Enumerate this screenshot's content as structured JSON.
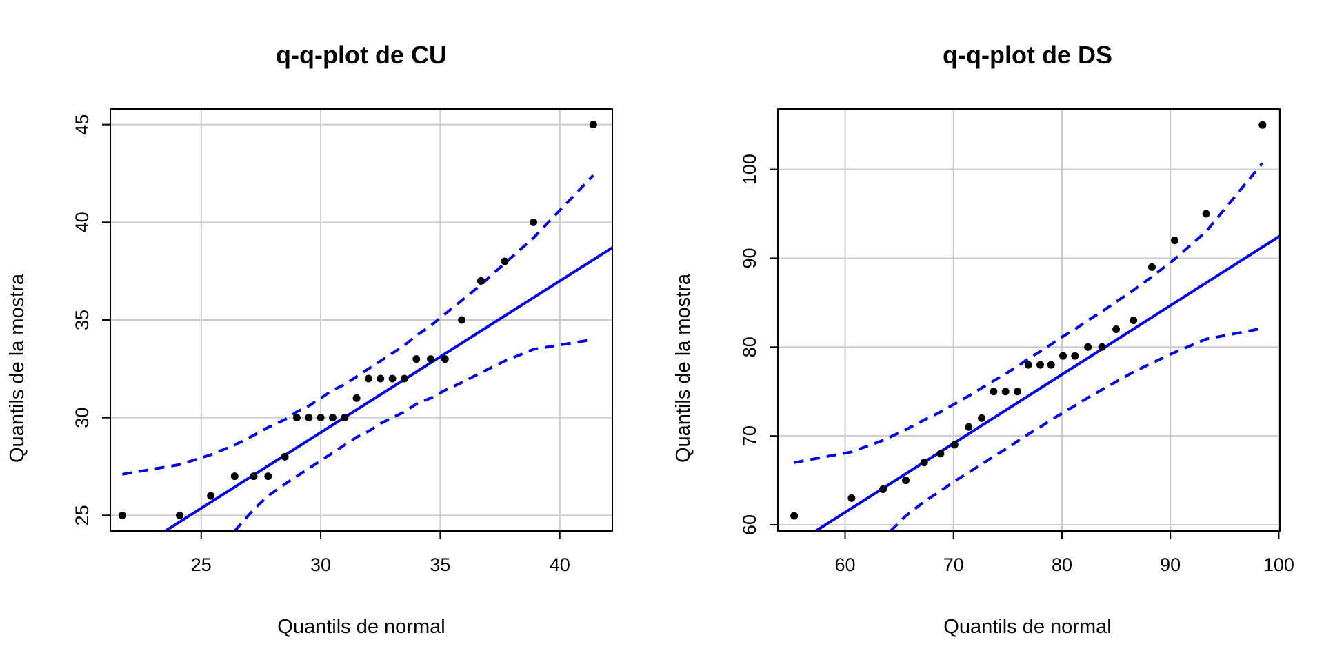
{
  "chart_data": [
    {
      "type": "scatter",
      "title": "q-q-plot de CU",
      "xlabel": "Quantils de normal",
      "ylabel": "Quantils de la mostra",
      "xlim": [
        21.2,
        42.2
      ],
      "ylim": [
        24.2,
        45.8
      ],
      "xticks": [
        25,
        30,
        35,
        40
      ],
      "yticks": [
        25,
        30,
        35,
        40,
        45
      ],
      "grid": true,
      "points": {
        "x": [
          21.7,
          24.1,
          25.4,
          26.4,
          27.2,
          27.8,
          28.5,
          29.0,
          29.5,
          30.0,
          30.5,
          31.0,
          31.5,
          32.0,
          32.5,
          33.0,
          33.5,
          34.0,
          34.6,
          35.2,
          35.9,
          36.7,
          37.7,
          38.9,
          41.4
        ],
        "y": [
          25,
          25,
          26,
          27,
          27,
          27,
          28,
          30,
          30,
          30,
          30,
          30,
          31,
          32,
          32,
          32,
          32,
          33,
          33,
          33,
          35,
          37,
          38,
          40,
          45
        ]
      },
      "reference_line": {
        "x": [
          23.5,
          42.2
        ],
        "y": [
          24.2,
          38.7
        ]
      },
      "confidence_band": {
        "upper": {
          "x": [
            21.7,
            24.1,
            25.4,
            26.4,
            27.2,
            27.8,
            28.5,
            29.0,
            29.5,
            30.0,
            30.5,
            31.0,
            31.5,
            32.0,
            32.5,
            33.0,
            33.5,
            34.0,
            34.6,
            35.2,
            35.9,
            36.7,
            37.7,
            38.9,
            41.4
          ],
          "y": [
            27.1,
            27.6,
            28.1,
            28.6,
            29.1,
            29.5,
            29.9,
            30.3,
            30.6,
            31.0,
            31.4,
            31.7,
            32.1,
            32.5,
            32.9,
            33.3,
            33.7,
            34.2,
            34.7,
            35.3,
            36.0,
            36.8,
            37.9,
            39.2,
            42.4
          ]
        },
        "lower": {
          "x": [
            26.4,
            27.2,
            27.8,
            28.5,
            29.0,
            29.5,
            30.0,
            30.5,
            31.0,
            31.5,
            32.0,
            32.5,
            33.0,
            33.5,
            34.0,
            34.6,
            35.2,
            35.9,
            36.7,
            37.7,
            38.9,
            41.4
          ],
          "y": [
            24.2,
            25.3,
            26.0,
            26.6,
            27.0,
            27.4,
            27.8,
            28.2,
            28.6,
            29.0,
            29.3,
            29.7,
            30.0,
            30.3,
            30.7,
            31.0,
            31.4,
            31.8,
            32.3,
            32.9,
            33.5,
            34.0
          ]
        }
      }
    },
    {
      "type": "scatter",
      "title": "q-q-plot de DS",
      "xlabel": "Quantils de normal",
      "ylabel": "Quantils de la mostra",
      "xlim": [
        53.8,
        100.1
      ],
      "ylim": [
        59.3,
        106.8
      ],
      "xticks": [
        60,
        70,
        80,
        90,
        100
      ],
      "yticks": [
        60,
        70,
        80,
        90,
        100
      ],
      "grid": true,
      "points": {
        "x": [
          55.3,
          60.6,
          63.5,
          65.6,
          67.3,
          68.8,
          70.1,
          71.4,
          72.6,
          73.7,
          74.8,
          75.9,
          76.9,
          78.0,
          79.0,
          80.1,
          81.2,
          82.4,
          83.7,
          85.0,
          86.6,
          88.3,
          90.4,
          93.3,
          98.5
        ],
        "y": [
          61,
          63,
          64,
          65,
          67,
          68,
          69,
          71,
          72,
          75,
          75,
          75,
          78,
          78,
          78,
          79,
          79,
          80,
          80,
          82,
          83,
          89,
          92,
          95,
          105
        ]
      },
      "reference_line": {
        "x": [
          57.3,
          100.1
        ],
        "y": [
          59.3,
          92.5
        ]
      },
      "confidence_band": {
        "upper": {
          "x": [
            55.3,
            60.6,
            63.5,
            65.6,
            67.3,
            68.8,
            70.1,
            71.4,
            72.6,
            73.7,
            74.8,
            75.9,
            76.9,
            78.0,
            79.0,
            80.1,
            81.2,
            82.4,
            83.7,
            85.0,
            86.6,
            88.3,
            90.4,
            93.3,
            98.5
          ],
          "y": [
            67.0,
            68.2,
            69.5,
            70.7,
            71.8,
            72.7,
            73.6,
            74.5,
            75.4,
            76.2,
            77.0,
            77.8,
            78.7,
            79.5,
            80.3,
            81.2,
            82.0,
            83.0,
            84.0,
            85.1,
            86.4,
            87.9,
            89.9,
            93.0,
            100.7
          ]
        },
        "lower": {
          "x": [
            64.2,
            65.6,
            67.3,
            68.8,
            70.1,
            71.4,
            72.6,
            73.7,
            74.8,
            75.9,
            76.9,
            78.0,
            79.0,
            80.1,
            81.2,
            82.4,
            83.7,
            85.0,
            86.6,
            88.3,
            90.4,
            93.3,
            98.5
          ],
          "y": [
            59.3,
            61.0,
            62.6,
            63.8,
            64.9,
            65.9,
            66.8,
            67.7,
            68.5,
            69.4,
            70.2,
            71.0,
            71.8,
            72.6,
            73.4,
            74.3,
            75.2,
            76.1,
            77.2,
            78.2,
            79.4,
            80.9,
            82.1
          ]
        }
      }
    }
  ],
  "colors": {
    "points": "#000000",
    "line": "#0000ee",
    "grid": "#cccccc"
  }
}
